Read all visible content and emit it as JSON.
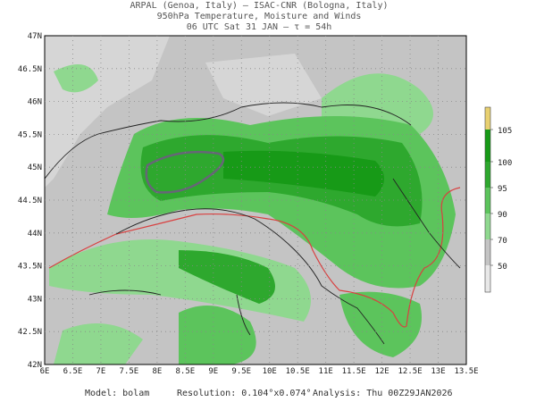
{
  "header": {
    "line1": "ARPAL (Genoa, Italy)  –  ISAC-CNR (Bologna, Italy)",
    "line2": "950hPa Temperature, Moisture and Winds",
    "line3": "06 UTC Sat 31 JAN  –  τ = 54h"
  },
  "map": {
    "lat_labels": [
      "47N",
      "46.5N",
      "46N",
      "45.5N",
      "45N",
      "44.5N",
      "44N",
      "43.5N",
      "43N",
      "42.5N",
      "42N"
    ],
    "lon_labels": [
      "6E",
      "6.5E",
      "7E",
      "7.5E",
      "8E",
      "8.5E",
      "9E",
      "9.5E",
      "10E",
      "10.5E",
      "11E",
      "11.5E",
      "12E",
      "12.5E",
      "13E",
      "13.5E"
    ]
  },
  "colorbar": {
    "labels": [
      "105",
      "100",
      "95",
      "90",
      "70",
      "50"
    ]
  },
  "footer": {
    "model": "Model: bolam",
    "resolution": "Resolution: 0.104°x0.074°",
    "analysis": "Analysis: Thu 00Z29JAN2026"
  }
}
